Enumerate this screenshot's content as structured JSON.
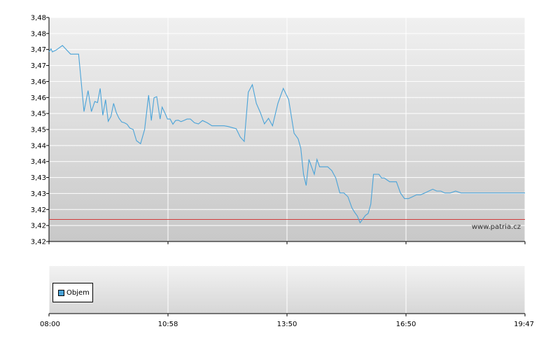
{
  "chart_data": [
    {
      "type": "line",
      "title": "",
      "xlabel": "",
      "ylabel": "",
      "ylim": [
        3.42,
        3.48
      ],
      "y_ticks": [
        "3,48",
        "3,48",
        "3,47",
        "3,47",
        "3,46",
        "3,46",
        "3,45",
        "3,45",
        "3,44",
        "3,44",
        "3,43",
        "3,43",
        "3,42",
        "3,42",
        "3,42"
      ],
      "x_ticks": [
        "08:00",
        "10:58",
        "13:50",
        "16:50",
        "19:47"
      ],
      "grid": true,
      "line_color": "#4aa3d8",
      "reference_line": {
        "value": 3.4259,
        "color": "#d23c3c"
      },
      "watermark": "www.patria.cz",
      "series": [
        {
          "x": [
            "08:00",
            "08:03",
            "08:05",
            "08:10",
            "08:20",
            "08:32",
            "08:44",
            "08:52",
            "08:58",
            "09:03",
            "09:08",
            "09:12",
            "09:16",
            "09:20",
            "09:24",
            "09:28",
            "09:32",
            "09:36",
            "09:40",
            "09:44",
            "09:48",
            "09:52",
            "09:56",
            "10:00",
            "10:05",
            "10:10",
            "10:16",
            "10:22",
            "10:28",
            "10:32",
            "10:36",
            "10:40",
            "10:45",
            "10:48",
            "10:52",
            "10:56",
            "11:00",
            "11:04",
            "11:08",
            "11:12",
            "11:16",
            "11:20",
            "11:25",
            "11:30",
            "11:36",
            "11:42",
            "11:48",
            "11:55",
            "12:02",
            "12:08",
            "12:14",
            "12:20",
            "12:26",
            "12:32",
            "12:38",
            "12:44",
            "12:50",
            "12:56",
            "13:02",
            "13:08",
            "13:14",
            "13:20",
            "13:26",
            "13:32",
            "13:40",
            "13:48",
            "13:56",
            "14:04",
            "14:10",
            "14:14",
            "14:18",
            "14:22",
            "14:26",
            "14:30",
            "14:34",
            "14:38",
            "14:42",
            "14:48",
            "14:54",
            "15:00",
            "15:06",
            "15:12",
            "15:18",
            "15:24",
            "15:30",
            "15:34",
            "15:38",
            "15:42",
            "15:46",
            "15:50",
            "15:54",
            "15:58",
            "16:02",
            "16:06",
            "16:10",
            "16:14",
            "16:18",
            "16:22",
            "16:26",
            "16:30",
            "16:36",
            "16:42",
            "16:48",
            "16:54",
            "17:00",
            "17:06",
            "17:12",
            "17:18",
            "17:24",
            "17:30",
            "17:36",
            "17:42",
            "17:48",
            "17:56",
            "18:04",
            "18:12",
            "18:20",
            "18:28",
            "18:36",
            "18:44",
            "18:52",
            "19:00",
            "19:10",
            "19:20",
            "19:30",
            "19:40",
            "19:47"
          ],
          "values": [
            3.4708,
            3.4716,
            3.4708,
            3.4712,
            3.4725,
            3.4702,
            3.4702,
            3.4548,
            3.4604,
            3.4548,
            3.4575,
            3.4572,
            3.461,
            3.4538,
            3.458,
            3.4522,
            3.4535,
            3.457,
            3.4545,
            3.453,
            3.452,
            3.4518,
            3.4514,
            3.4504,
            3.45,
            3.447,
            3.4462,
            3.45,
            3.4592,
            3.4524,
            3.4585,
            3.4588,
            3.4528,
            3.456,
            3.4545,
            3.4528,
            3.4528,
            3.4514,
            3.4524,
            3.4525,
            3.4521,
            3.4524,
            3.4528,
            3.4528,
            3.4518,
            3.4515,
            3.4524,
            3.4518,
            3.451,
            3.451,
            3.451,
            3.451,
            3.4508,
            3.4505,
            3.4502,
            3.448,
            3.4468,
            3.46,
            3.462,
            3.457,
            3.4545,
            3.4515,
            3.453,
            3.451,
            3.457,
            3.461,
            3.458,
            3.449,
            3.4475,
            3.445,
            3.438,
            3.435,
            3.442,
            3.44,
            3.438,
            3.442,
            3.44,
            3.44,
            3.44,
            3.439,
            3.437,
            3.433,
            3.433,
            3.432,
            3.429,
            3.4278,
            3.4268,
            3.425,
            3.426,
            3.427,
            3.4275,
            3.43,
            3.438,
            3.438,
            3.438,
            3.437,
            3.437,
            3.4365,
            3.436,
            3.436,
            3.436,
            3.433,
            3.4315,
            3.4315,
            3.432,
            3.4325,
            3.4325,
            3.433,
            3.4335,
            3.434,
            3.4335,
            3.4335,
            3.433,
            3.433,
            3.4335,
            3.433,
            3.433,
            3.433,
            3.433,
            3.433,
            3.433,
            3.433,
            3.433,
            3.433,
            3.433,
            3.433,
            3.433
          ]
        }
      ]
    },
    {
      "type": "bar",
      "x_ticks": [
        "08:00",
        "10:58",
        "13:50",
        "16:50",
        "19:47"
      ],
      "legend": {
        "position": "bottom-left",
        "items": [
          "Objem"
        ]
      },
      "series": [
        {
          "name": "Objem",
          "color": "#4aa3d8",
          "values": []
        }
      ]
    }
  ]
}
